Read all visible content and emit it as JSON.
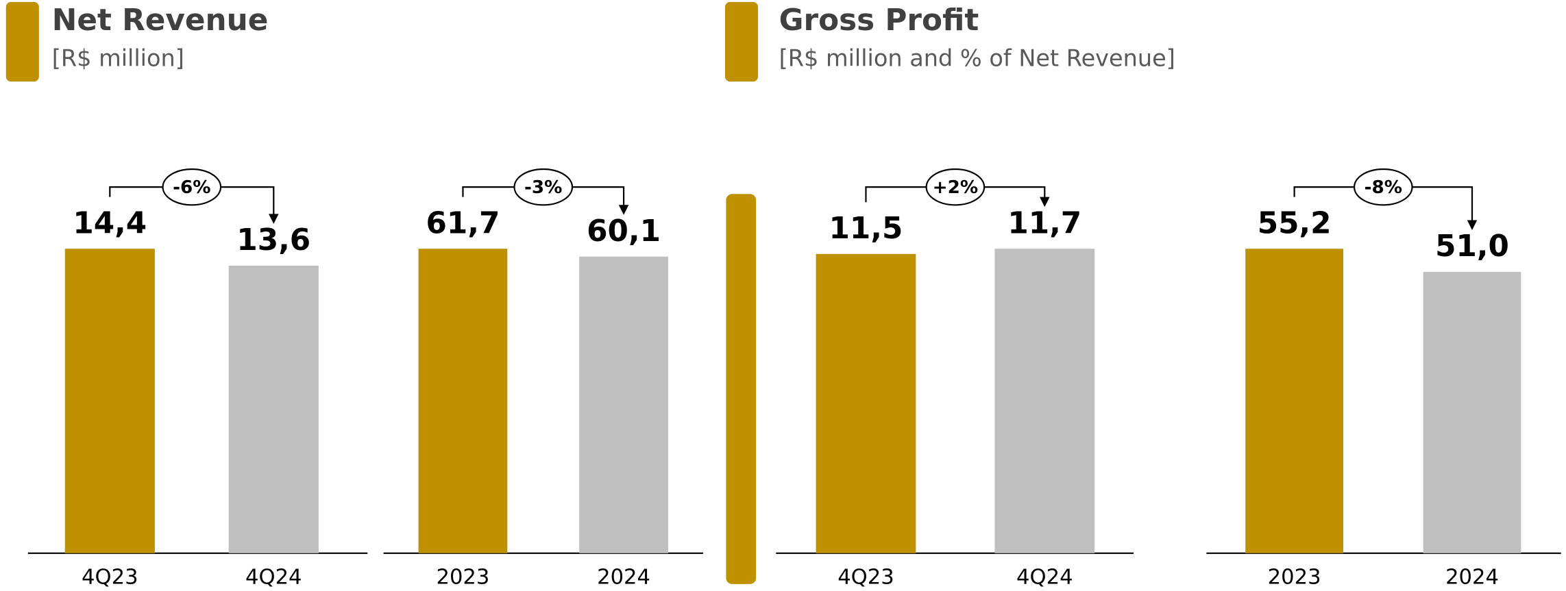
{
  "headers": [
    {
      "title": "Net Revenue",
      "subtitle": "[R$ million]"
    },
    {
      "title": "Gross Profit",
      "subtitle": "[R$ million and % of Net Revenue]"
    }
  ],
  "chart_data": [
    {
      "type": "bar",
      "categories": [
        "4Q23",
        "4Q24"
      ],
      "values": [
        14.4,
        13.6
      ],
      "value_labels": [
        "14,4",
        "13,6"
      ],
      "colors": [
        "#BF9000",
        "#BFBFBF"
      ],
      "annotation": "-6%"
    },
    {
      "type": "bar",
      "categories": [
        "2023",
        "2024"
      ],
      "values": [
        61.7,
        60.1
      ],
      "value_labels": [
        "61,7",
        "60,1"
      ],
      "colors": [
        "#BF9000",
        "#BFBFBF"
      ],
      "annotation": "-3%"
    },
    {
      "type": "bar",
      "categories": [
        "4Q23",
        "4Q24"
      ],
      "values": [
        11.5,
        11.7
      ],
      "value_labels": [
        "11,5",
        "11,7"
      ],
      "colors": [
        "#BF9000",
        "#BFBFBF"
      ],
      "annotation": "+2%"
    },
    {
      "type": "bar",
      "categories": [
        "2023",
        "2024"
      ],
      "values": [
        55.2,
        51.0
      ],
      "value_labels": [
        "55,2",
        "51,0"
      ],
      "colors": [
        "#BF9000",
        "#BFBFBF"
      ],
      "annotation": "-8%"
    }
  ]
}
